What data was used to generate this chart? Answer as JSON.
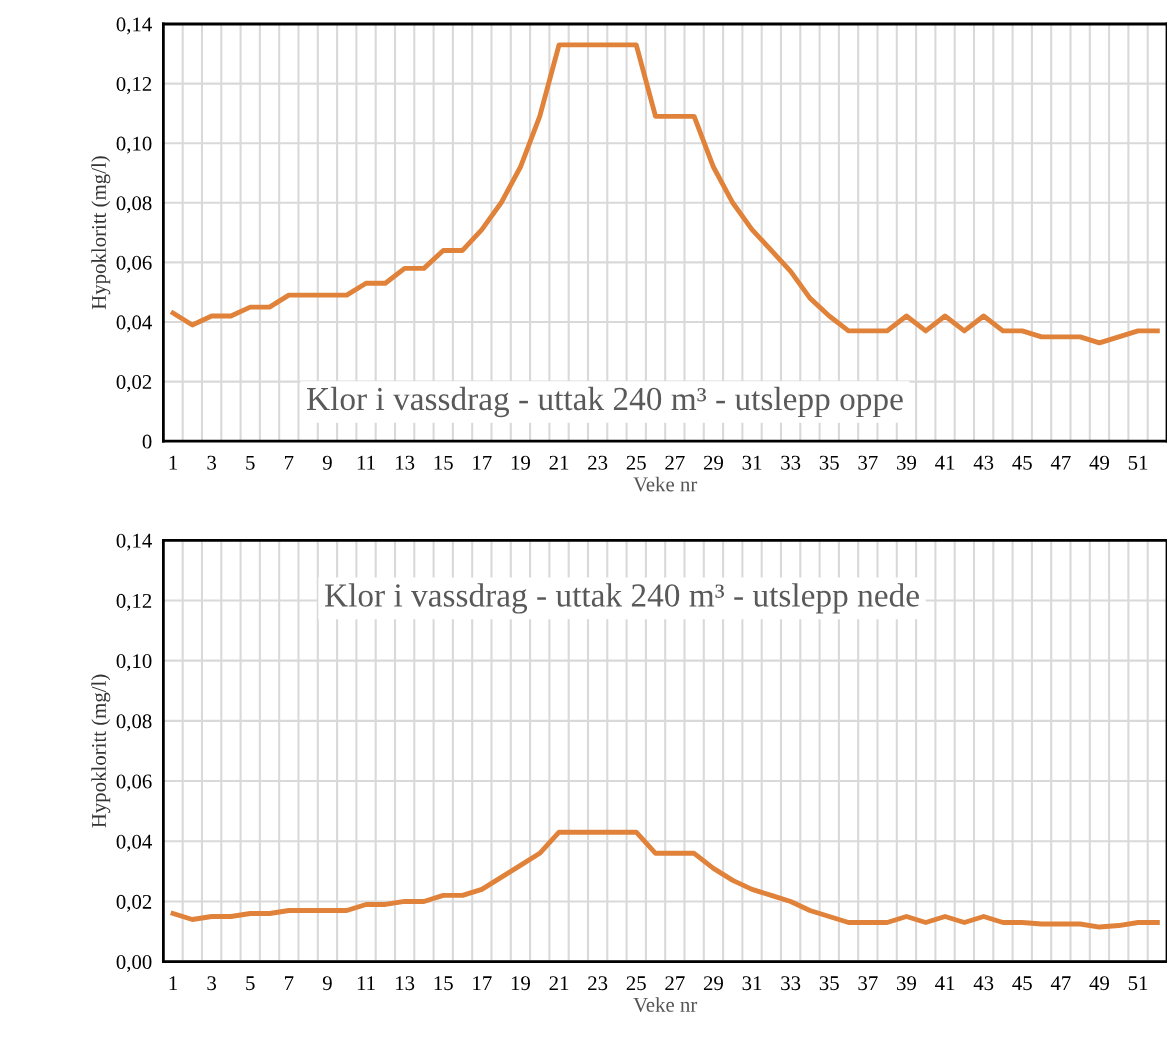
{
  "chart_data": [
    {
      "type": "line",
      "title": "Klor i vassdrag - uttak 240 m³ - utslepp oppe",
      "xlabel": "Veke nr",
      "ylabel": "Hypokloritt (mg/l)",
      "categories": [
        "1",
        null,
        "3",
        null,
        "5",
        null,
        "7",
        null,
        "9",
        null,
        "11",
        null,
        "13",
        null,
        "15",
        null,
        "17",
        null,
        "19",
        null,
        "21",
        null,
        "23",
        null,
        "25",
        null,
        "27",
        null,
        "29",
        null,
        "31",
        null,
        "33",
        null,
        "35",
        null,
        "37",
        null,
        "39",
        null,
        "41",
        null,
        "43",
        null,
        "45",
        null,
        "47",
        null,
        "49",
        null,
        "51",
        null
      ],
      "series": [
        {
          "color": "#e0823a",
          "values": [
            0.043,
            0.039,
            0.042,
            0.042,
            0.045,
            0.045,
            0.049,
            0.049,
            0.049,
            0.049,
            0.053,
            0.053,
            0.058,
            0.058,
            0.064,
            0.064,
            0.071,
            0.08,
            0.092,
            0.109,
            0.133,
            0.133,
            0.133,
            0.133,
            0.133,
            0.109,
            0.109,
            0.109,
            0.092,
            0.08,
            0.071,
            0.064,
            0.057,
            0.048,
            0.042,
            0.037,
            0.037,
            0.037,
            0.042,
            0.037,
            0.042,
            0.037,
            0.042,
            0.037,
            0.037,
            0.035,
            0.035,
            0.035,
            0.033,
            0.035,
            0.037,
            0.037
          ]
        }
      ],
      "ylim": [
        0,
        0.14
      ],
      "yticks": [
        {
          "value": 0,
          "label": "0"
        },
        {
          "value": 0.02,
          "label": "0,02"
        },
        {
          "value": 0.04,
          "label": "0,04"
        },
        {
          "value": 0.06,
          "label": "0,06"
        },
        {
          "value": 0.08,
          "label": "0,08"
        },
        {
          "value": 0.1,
          "label": "0,10"
        },
        {
          "value": 0.12,
          "label": "0,12"
        },
        {
          "value": 0.14,
          "label": "0,14"
        }
      ],
      "grid": true,
      "line_style": "solid"
    },
    {
      "type": "line",
      "title": "Klor i vassdrag - uttak 240 m³ - utslepp nede",
      "xlabel": "Veke nr",
      "ylabel": "Hypokloritt (mg/l)",
      "categories": [
        "1",
        null,
        "3",
        null,
        "5",
        null,
        "7",
        null,
        "9",
        null,
        "11",
        null,
        "13",
        null,
        "15",
        null,
        "17",
        null,
        "19",
        null,
        "21",
        null,
        "23",
        null,
        "25",
        null,
        "27",
        null,
        "29",
        null,
        "31",
        null,
        "33",
        null,
        "35",
        null,
        "37",
        null,
        "39",
        null,
        "41",
        null,
        "43",
        null,
        "45",
        null,
        "47",
        null,
        "49",
        null,
        "51",
        null
      ],
      "series": [
        {
          "color": "#e0823a",
          "values": [
            0.016,
            0.014,
            0.015,
            0.015,
            0.016,
            0.016,
            0.017,
            0.017,
            0.017,
            0.017,
            0.019,
            0.019,
            0.02,
            0.02,
            0.022,
            0.022,
            0.024,
            0.028,
            0.032,
            0.036,
            0.043,
            0.043,
            0.043,
            0.043,
            0.043,
            0.036,
            0.036,
            0.036,
            0.031,
            0.027,
            0.024,
            0.022,
            0.02,
            0.017,
            0.015,
            0.013,
            0.013,
            0.013,
            0.015,
            0.013,
            0.015,
            0.013,
            0.015,
            0.013,
            0.013,
            0.0125,
            0.0125,
            0.0125,
            0.0115,
            0.012,
            0.013,
            0.013
          ]
        }
      ],
      "ylim": [
        0,
        0.14
      ],
      "yticks": [
        {
          "value": 0,
          "label": "0,00"
        },
        {
          "value": 0.02,
          "label": "0,02"
        },
        {
          "value": 0.04,
          "label": "0,04"
        },
        {
          "value": 0.06,
          "label": "0,06"
        },
        {
          "value": 0.08,
          "label": "0,08"
        },
        {
          "value": 0.1,
          "label": "0,10"
        },
        {
          "value": 0.12,
          "label": "0,12"
        },
        {
          "value": 0.14,
          "label": "0,14"
        }
      ],
      "grid": true,
      "line_style": "solid"
    }
  ]
}
